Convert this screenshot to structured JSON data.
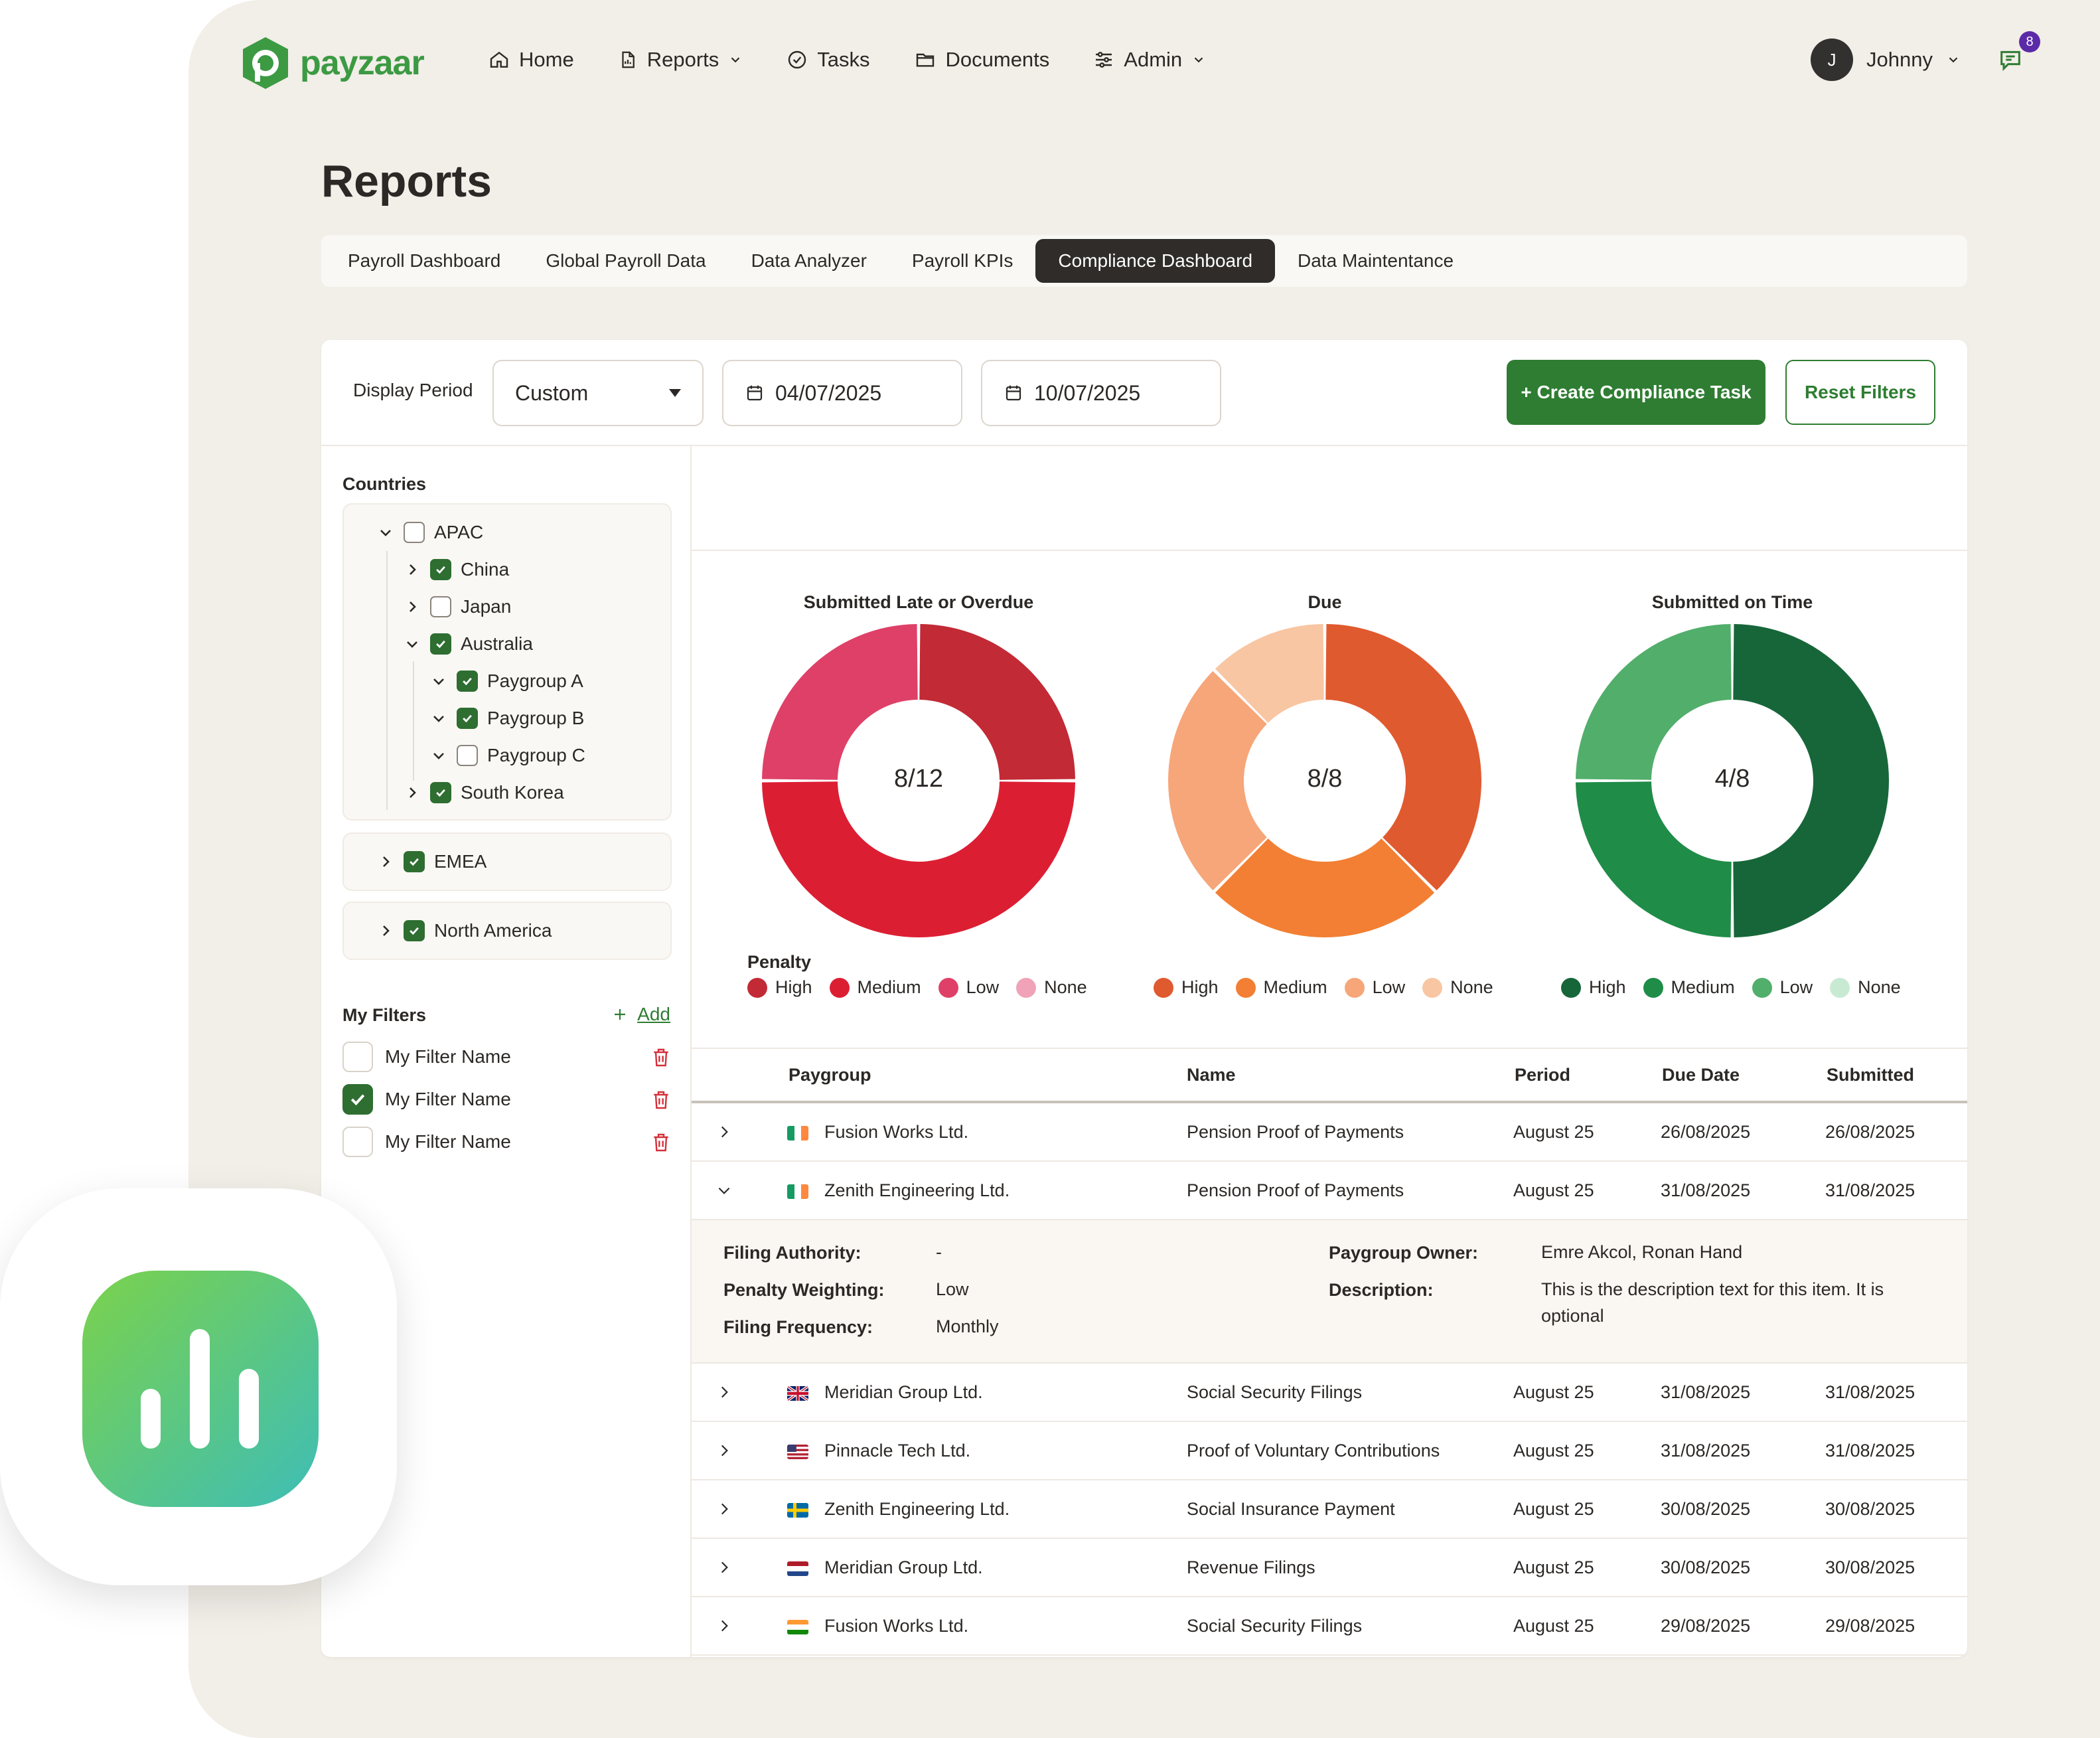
{
  "brand": {
    "name": "payzaar",
    "color": "#3c9a43"
  },
  "nav": {
    "items": [
      {
        "label": "Home",
        "icon": "home-icon"
      },
      {
        "label": "Reports",
        "icon": "document-icon",
        "dropdown": true
      },
      {
        "label": "Tasks",
        "icon": "check-circle-icon"
      },
      {
        "label": "Documents",
        "icon": "folder-icon"
      },
      {
        "label": "Admin",
        "icon": "sliders-icon",
        "dropdown": true
      }
    ],
    "user": {
      "initial": "J",
      "name": "Johnny"
    },
    "notifications": {
      "count": "8",
      "icon": "chat-icon"
    }
  },
  "page": {
    "title": "Reports"
  },
  "tabs": [
    {
      "label": "Payroll Dashboard",
      "active": false
    },
    {
      "label": "Global Payroll Data",
      "active": false
    },
    {
      "label": "Data Analyzer",
      "active": false
    },
    {
      "label": "Payroll KPIs",
      "active": false
    },
    {
      "label": "Compliance Dashboard",
      "active": true
    },
    {
      "label": "Data Maintentance",
      "active": false
    }
  ],
  "filters": {
    "display_period_label": "Display Period",
    "period_value": "Custom",
    "start_date": "04/07/2025",
    "end_date": "10/07/2025",
    "create_button": "+ Create Compliance Task",
    "reset_button": "Reset Filters"
  },
  "sidebar": {
    "countries_heading": "Countries",
    "tree": {
      "apac": {
        "label": "APAC",
        "checked": false,
        "expanded": true
      },
      "china": {
        "label": "China",
        "checked": true
      },
      "japan": {
        "label": "Japan",
        "checked": false
      },
      "australia": {
        "label": "Australia",
        "checked": true
      },
      "paygroup_a": {
        "label": "Paygroup A",
        "checked": true
      },
      "paygroup_b": {
        "label": "Paygroup B",
        "checked": true
      },
      "paygroup_c": {
        "label": "Paygroup C",
        "checked": false
      },
      "south_korea": {
        "label": "South Korea",
        "checked": true
      },
      "emea": {
        "label": "EMEA",
        "checked": true
      },
      "north_america": {
        "label": "North America",
        "checked": true
      }
    },
    "my_filters_heading": "My Filters",
    "add_label": "Add",
    "my_filters": [
      {
        "label": "My Filter Name",
        "checked": false
      },
      {
        "label": "My Filter Name",
        "checked": true
      },
      {
        "label": "My Filter Name",
        "checked": false
      }
    ]
  },
  "chart_data": [
    {
      "type": "pie",
      "title": "Submitted Late or Overdue",
      "center_label": "8/12",
      "categories": [
        "High",
        "Medium",
        "Low",
        "None"
      ],
      "values": [
        3,
        6,
        3,
        0
      ],
      "colors": [
        "#c22a35",
        "#dc1e33",
        "#df4068",
        "#f0a3b8"
      ]
    },
    {
      "type": "pie",
      "title": "Due",
      "center_label": "8/8",
      "categories": [
        "High",
        "Medium",
        "Low",
        "None"
      ],
      "values": [
        3,
        2,
        2,
        1
      ],
      "colors": [
        "#e05a2f",
        "#f27f33",
        "#f6a679",
        "#f8c6a2"
      ]
    },
    {
      "type": "pie",
      "title": "Submitted on Time",
      "center_label": "4/8",
      "categories": [
        "High",
        "Medium",
        "Low",
        "None"
      ],
      "values": [
        4,
        2,
        2,
        0
      ],
      "colors": [
        "#17663a",
        "#1f8c48",
        "#52ae6b",
        "#c8ead3"
      ]
    }
  ],
  "penalty_legend": {
    "title": "Penalty",
    "labels": [
      "High",
      "Medium",
      "Low",
      "None"
    ]
  },
  "table": {
    "headers": [
      "Paygroup",
      "Name",
      "Period",
      "Due Date",
      "Submitted"
    ],
    "rows": [
      {
        "flag": "ireland",
        "paygroup": "Fusion Works Ltd.",
        "name": "Pension Proof of Payments",
        "period": "August 25",
        "due": "26/08/2025",
        "submitted": "26/08/2025",
        "expanded": false
      },
      {
        "flag": "ireland",
        "paygroup": "Zenith Engineering Ltd.",
        "name": "Pension Proof of Payments",
        "period": "August 25",
        "due": "31/08/2025",
        "submitted": "31/08/2025",
        "expanded": true
      },
      {
        "flag": "uk",
        "paygroup": "Meridian Group Ltd.",
        "name": "Social Security Filings",
        "period": "August 25",
        "due": "31/08/2025",
        "submitted": "31/08/2025",
        "expanded": false
      },
      {
        "flag": "us",
        "paygroup": "Pinnacle Tech Ltd.",
        "name": "Proof of Voluntary Contributions",
        "period": "August 25",
        "due": "31/08/2025",
        "submitted": "31/08/2025",
        "expanded": false
      },
      {
        "flag": "sweden",
        "paygroup": "Zenith Engineering Ltd.",
        "name": "Social Insurance Payment",
        "period": "August 25",
        "due": "30/08/2025",
        "submitted": "30/08/2025",
        "expanded": false
      },
      {
        "flag": "netherlands",
        "paygroup": "Meridian Group Ltd.",
        "name": "Revenue Filings",
        "period": "August 25",
        "due": "30/08/2025",
        "submitted": "30/08/2025",
        "expanded": false
      },
      {
        "flag": "india",
        "paygroup": "Fusion Works Ltd.",
        "name": "Social Security Filings",
        "period": "August 25",
        "due": "29/08/2025",
        "submitted": "29/08/2025",
        "expanded": false
      }
    ],
    "detail": {
      "filing_authority_label": "Filing Authority:",
      "filing_authority": "-",
      "penalty_weighting_label": "Penalty Weighting:",
      "penalty_weighting": "Low",
      "filing_frequency_label": "Filing Frequency:",
      "filing_frequency": "Monthly",
      "owner_label": "Paygroup Owner:",
      "owner": "Emre Akcol, Ronan Hand",
      "description_label": "Description:",
      "description": "This is the description text for this item. It is optional"
    }
  },
  "app_icon": {
    "icon": "bar-chart-icon"
  }
}
